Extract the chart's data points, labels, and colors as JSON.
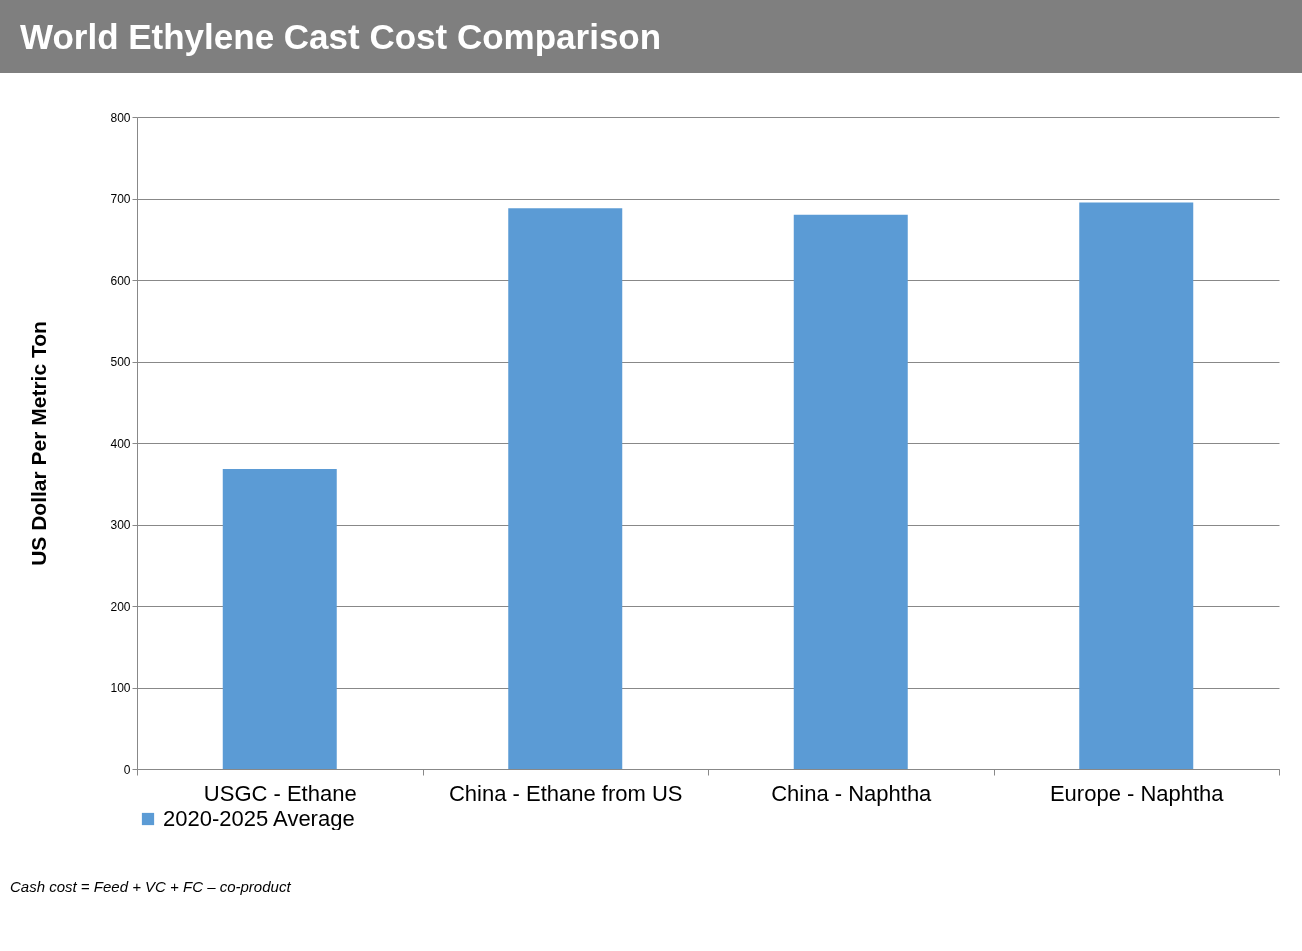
{
  "chart_data": {
    "type": "bar",
    "title": "World Ethylene Cast Cost Comparison",
    "ylabel": "US Dollar Per Metric Ton",
    "categories": [
      "USGC - Ethane",
      "China - Ethane from US",
      "China - Naphtha",
      "Europe - Naphtha"
    ],
    "series": [
      {
        "name": "2020-2025 Average",
        "color": "#5b9bd5",
        "values": [
          368,
          688,
          680,
          695
        ]
      }
    ],
    "ylim": [
      0,
      800
    ],
    "yticks": [
      0,
      100,
      200,
      300,
      400,
      500,
      600,
      700,
      800
    ],
    "grid": "y",
    "legend": "bottom",
    "annotations": [
      "Cash cost = Feed + VC + FC – co-product"
    ]
  }
}
